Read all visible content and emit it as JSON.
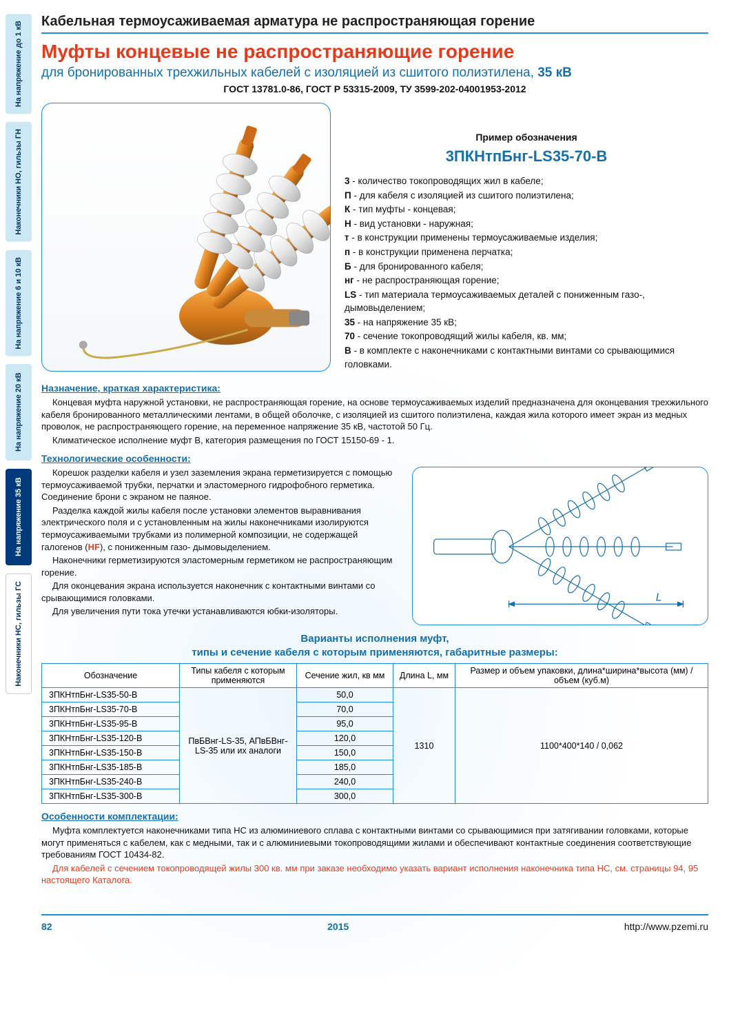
{
  "side_tabs": [
    {
      "label": "На напряжение до 1 кВ",
      "style": "tab-light"
    },
    {
      "label": "Наконечники НО, гильзы ГН",
      "style": "tab-light"
    },
    {
      "label": "На напряжение 6 и 10 кВ",
      "style": "tab-light"
    },
    {
      "label": "На напряжение 20 кВ",
      "style": "tab-light"
    },
    {
      "label": "На напряжение 35 кВ",
      "style": "tab-dark"
    },
    {
      "label": "Наконечники НС, гильзы ГС",
      "style": "tab-white"
    }
  ],
  "header": "Кабельная термоусаживаемая арматура не распространяющая горение",
  "title": "Муфты концевые не распространяющие горение",
  "subtitle_main": "для бронированных трехжильных кабелей с изоляцией из сшитого полиэтилена, ",
  "subtitle_bold": "35 кВ",
  "gost": "ГОСТ 13781.0-86, ГОСТ Р 53315-2009, ТУ 3599-202-04001953-2012",
  "legend": {
    "title": "Пример обозначения",
    "code": "3ПКНтпБнг-LS35-70-В",
    "items": [
      {
        "k": "3",
        "t": " - количество токопроводящих жил в кабеле;"
      },
      {
        "k": "П",
        "t": " - для кабеля с изоляцией из сшитого полиэтилена;"
      },
      {
        "k": "К",
        "t": " - тип муфты - концевая;"
      },
      {
        "k": "Н",
        "t": " - вид установки - наружная;"
      },
      {
        "k": "т",
        "t": " - в конструкции применены термоусаживаемые изделия;"
      },
      {
        "k": "п",
        "t": " - в конструкции применена перчатка;"
      },
      {
        "k": "Б",
        "t": " - для бронированного кабеля;"
      },
      {
        "k": "нг",
        "t": " - не распространяющая горение;"
      },
      {
        "k": "LS",
        "t": " - тип материала термоусаживаемых деталей с пониженным газо-, дымовыделением;"
      },
      {
        "k": "35",
        "t": " - на напряжение 35 кВ;"
      },
      {
        "k": "70",
        "t": " - сечение токопроводящий жилы кабеля, кв. мм;"
      },
      {
        "k": "В",
        "t": " - в комплекте с наконечниками с контактными винтами со срывающимися головками."
      }
    ]
  },
  "purpose_h": "Назначение, краткая характеристика:",
  "purpose_p": [
    "Концевая муфта наружной установки, не распространяющая горение, на основе термоусаживаемых изделий предназначена для оконцевания трехжильного кабеля бронированного металлическими лентами, в общей оболочке, с изоляцией из сшитого полиэтилена, каждая жила которого имеет экран из медных проволок, не распространяющего горение, на переменное напряжение 35 кВ, частотой 50 Гц.",
    "Климатическое исполнение муфт В, категория размещения по ГОСТ 15150-69 - 1."
  ],
  "tech_h": "Технологические особенности:",
  "tech_p": [
    "Корешок разделки кабеля и узел заземления экрана герметизируется с помощью термоусаживаемой трубки, перчатки и эластомерного гидрофобного герметика. Соединение брони с экраном не паяное.",
    "Разделка каждой жилы кабеля после установки элементов выравнивания электрического поля и с установленным на жилы наконечниками изолируются термоусаживаемыми трубками из полимерной композиции, не содержащей галогенов (",
    "), с пониженным газо- дымовыделением.",
    "Наконечники герметизируются эластомерным герметиком не распространяющим горение.",
    "Для оконцевания экрана используется наконечник с контактными винтами со срывающимися головками.",
    "Для увеличения пути тока утечки устанавливаются юбки-изоляторы."
  ],
  "hf": "HF",
  "table_title_1": "Варианты исполнения муфт,",
  "table_title_2": "типы и сечение кабеля с которым применяются, габаритные размеры:",
  "columns": [
    "Обозначение",
    "Типы кабеля с которым применяются",
    "Сечение жил, кв мм",
    "Длина L, мм",
    "Размер и объем упаковки, длина*ширина*высота (мм) / объем (куб.м)"
  ],
  "rows": [
    {
      "d": "3ПКНтпБнг-LS35-50-В",
      "s": "50,0"
    },
    {
      "d": "3ПКНтпБнг-LS35-70-В",
      "s": "70,0"
    },
    {
      "d": "3ПКНтпБнг-LS35-95-В",
      "s": "95,0"
    },
    {
      "d": "3ПКНтпБнг-LS35-120-В",
      "s": "120,0"
    },
    {
      "d": "3ПКНтпБнг-LS35-150-В",
      "s": "150,0"
    },
    {
      "d": "3ПКНтпБнг-LS35-185-В",
      "s": "185,0"
    },
    {
      "d": "3ПКНтпБнг-LS35-240-В",
      "s": "240,0"
    },
    {
      "d": "3ПКНтпБнг-LS35-300-В",
      "s": "300,0"
    }
  ],
  "cable_types": "ПвБВнг-LS-35, АПвБВнг-LS-35 или их аналоги",
  "length_val": "1310",
  "pack_val": "1100*400*140 / 0,062",
  "kit_h": "Особенности комплектации:",
  "kit_p1": "Муфта комплектуется наконечниками типа НС из алюминиевого сплава с контактными винтами со срывающимися при затягивании головками, которые могут применяться с кабелем, как с медными, так и с алюминиевыми токопроводящими жилами и обеспечивают контактные соединения соответствующие требованиям ГОСТ 10434-82.",
  "kit_p2": "Для кабелей с сечением токопроводящей жилы 300 кв. мм при заказе необходимо указать вариант исполнения наконечника типа НС, см. страницы 94, 95 настоящего Каталога.",
  "footer": {
    "page": "82",
    "year": "2015",
    "url": "http://www.pzemi.ru"
  },
  "colors": {
    "blue": "#156fa8",
    "lightblue": "#1a8fd6",
    "red": "#e53b1a",
    "tab_light": "#cde8f5",
    "tab_dark": "#003a7a",
    "cable_orange": "#d97a1a",
    "cable_dark": "#9c5a17",
    "skirt_light": "#f0f0f0",
    "skirt_dark": "#c8c8c8"
  },
  "diagram_label": "L"
}
